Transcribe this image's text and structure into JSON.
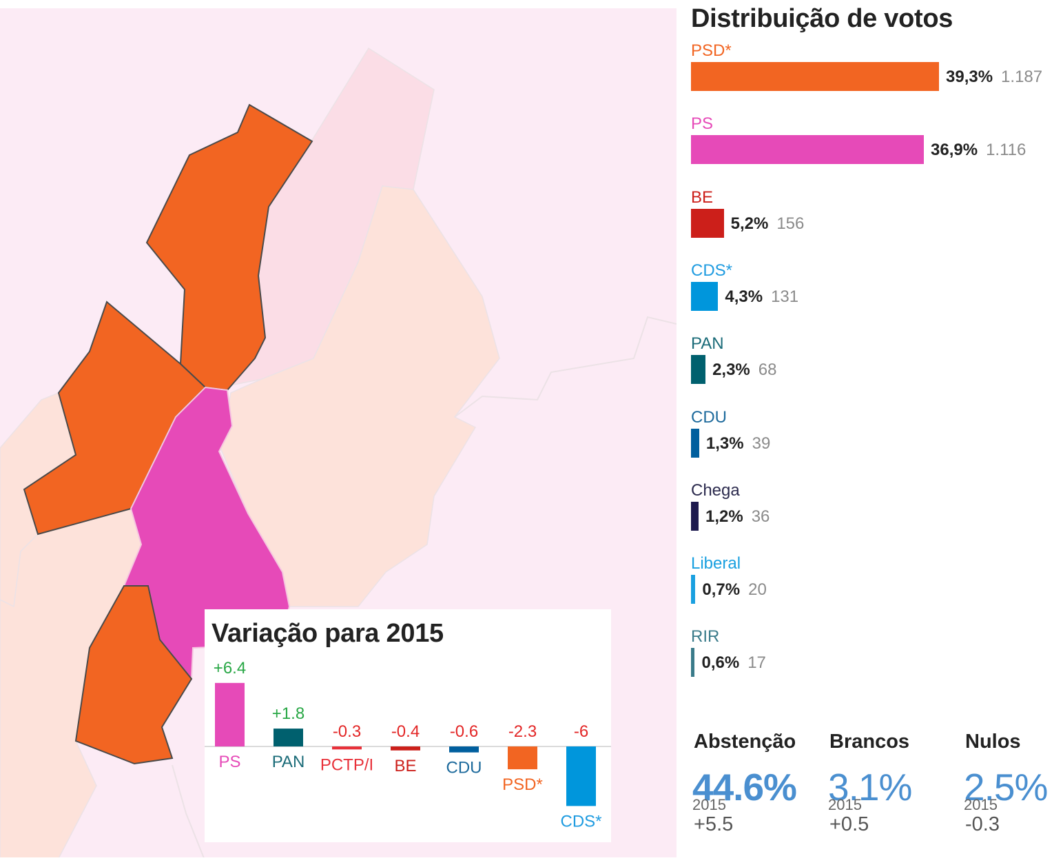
{
  "colors": {
    "map_background": "#fcebf5",
    "psd": "#f26522",
    "ps": "#e64ab8",
    "be": "#cc1f1a",
    "cds": "#0096dc",
    "pan": "#00606e",
    "cdu": "#005f9e",
    "chega": "#1d1a4e",
    "liberal": "#1aa0e0",
    "rir": "#3a7b8a",
    "pctp": "#e8313a",
    "positive": "#28a745",
    "negative": "#e32626",
    "stat_value": "#4a8fd0"
  },
  "distribution": {
    "title": "Distribuição de votos",
    "parties": [
      {
        "name": "PSD*",
        "pct_label": "39,3%",
        "votes": "1.187",
        "pct": 39.3,
        "color": "#f26522",
        "name_color": "#f26522"
      },
      {
        "name": "PS",
        "pct_label": "36,9%",
        "votes": "1.116",
        "pct": 36.9,
        "color": "#e64ab8",
        "name_color": "#e64ab8"
      },
      {
        "name": "BE",
        "pct_label": "5,2%",
        "votes": "156",
        "pct": 5.2,
        "color": "#cc1f1a",
        "name_color": "#cc1f1a"
      },
      {
        "name": "CDS*",
        "pct_label": "4,3%",
        "votes": "131",
        "pct": 4.3,
        "color": "#0096dc",
        "name_color": "#1e9be0"
      },
      {
        "name": "PAN",
        "pct_label": "2,3%",
        "votes": "68",
        "pct": 2.3,
        "color": "#00606e",
        "name_color": "#1a6b78"
      },
      {
        "name": "CDU",
        "pct_label": "1,3%",
        "votes": "39",
        "pct": 1.3,
        "color": "#005f9e",
        "name_color": "#1d6a9c"
      },
      {
        "name": "Chega",
        "pct_label": "1,2%",
        "votes": "36",
        "pct": 1.2,
        "color": "#1d1a4e",
        "name_color": "#2b2a4d"
      },
      {
        "name": "Liberal",
        "pct_label": "0,7%",
        "votes": "20",
        "pct": 0.7,
        "color": "#1aa0e0",
        "name_color": "#1aa0e0"
      },
      {
        "name": "RIR",
        "pct_label": "0,6%",
        "votes": "17",
        "pct": 0.6,
        "color": "#3a7b8a",
        "name_color": "#3a7b8a"
      }
    ]
  },
  "stats": [
    {
      "label": "Abstenção",
      "value": "44.6%",
      "delta": "+5.5",
      "year": "2015"
    },
    {
      "label": "Brancos",
      "value": "3.1%",
      "delta": "+0.5",
      "year": "2015"
    },
    {
      "label": "Nulos",
      "value": "2.5%",
      "delta": "-0.3",
      "year": "2015"
    }
  ],
  "chart_data": {
    "type": "bar",
    "title": "Variação para 2015",
    "categories": [
      "PS",
      "PAN",
      "PCTP/I",
      "BE",
      "CDU",
      "PSD*",
      "CDS*"
    ],
    "values": [
      6.4,
      1.8,
      -0.3,
      -0.4,
      -0.6,
      -2.3,
      -6
    ],
    "value_labels": [
      "+6.4",
      "+1.8",
      "-0.3",
      "-0.4",
      "-0.6",
      "-2.3",
      "-6"
    ],
    "bar_colors": [
      "#e64ab8",
      "#00606e",
      "#e8313a",
      "#cc1f1a",
      "#005f9e",
      "#f26522",
      "#0096dc"
    ],
    "category_label_colors": [
      "#e64ab8",
      "#1a6b78",
      "#e8313a",
      "#cc1f1a",
      "#1d6a9c",
      "#f26522",
      "#1e9be0"
    ],
    "xlabel": "",
    "ylabel": "",
    "ylim": [
      -6.5,
      7
    ],
    "grid": false,
    "legend": "none"
  }
}
